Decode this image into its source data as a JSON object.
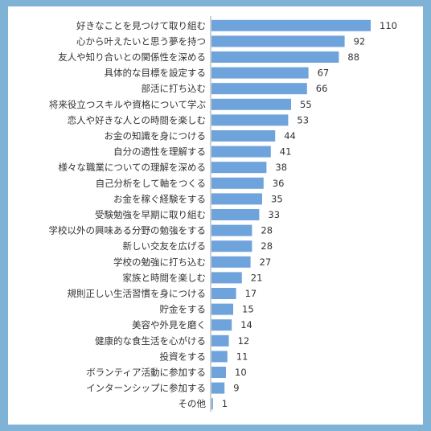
{
  "colors": {
    "background": "#7fb3d5",
    "panel": "#ffffff",
    "bar": "#6fa3dc",
    "axis": "#9e9e9e",
    "text": "#333333"
  },
  "chart_data": {
    "type": "bar",
    "orientation": "horizontal",
    "title": "",
    "xlabel": "",
    "ylabel": "",
    "xlim": [
      0,
      110
    ],
    "grid": false,
    "categories": [
      "好きなことを見つけて取り組む",
      "心から叶えたいと思う夢を持つ",
      "友人や知り合いとの関係性を深める",
      "具体的な目標を設定する",
      "部活に打ち込む",
      "将来役立つスキルや資格について学ぶ",
      "恋人や好きな人との時間を楽しむ",
      "お金の知識を身につける",
      "自分の適性を理解する",
      "様々な職業についての理解を深める",
      "自己分析をして軸をつくる",
      "お金を稼ぐ経験をする",
      "受験勉強を早期に取り組む",
      "学校以外の興味ある分野の勉強をする",
      "新しい交友を広げる",
      "学校の勉強に打ち込む",
      "家族と時間を楽しむ",
      "規則正しい生活習慣を身につける",
      "貯金をする",
      "美容や外見を磨く",
      "健康的な食生活を心がける",
      "投資をする",
      "ボランティア活動に参加する",
      "インターンシップに参加する",
      "その他"
    ],
    "values": [
      110,
      92,
      88,
      67,
      66,
      55,
      53,
      44,
      41,
      38,
      36,
      35,
      33,
      28,
      28,
      27,
      21,
      17,
      15,
      14,
      12,
      11,
      10,
      9,
      1
    ]
  }
}
